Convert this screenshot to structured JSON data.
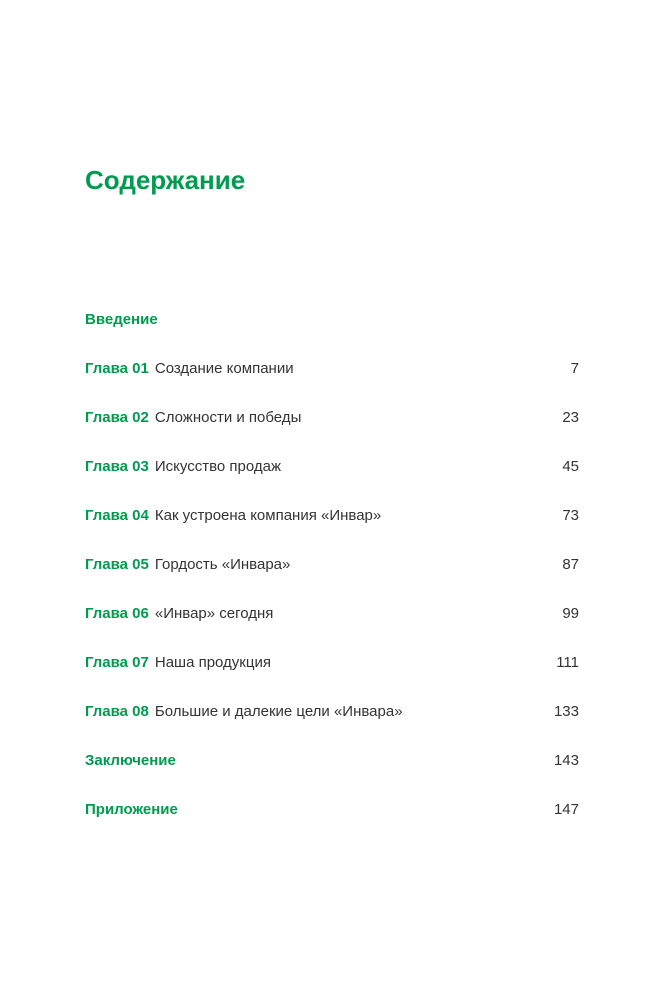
{
  "colors": {
    "accent": "#009b4e",
    "text": "#333333",
    "background": "#ffffff"
  },
  "typography": {
    "title_fontsize": 26,
    "body_fontsize": 15,
    "title_weight": "bold",
    "label_weight": "bold"
  },
  "title": "Содержание",
  "intro": "Введение",
  "chapters": [
    {
      "label": "Глава 01",
      "title": "Создание компании",
      "page": "7"
    },
    {
      "label": "Глава 02",
      "title": "Сложности и победы",
      "page": "23"
    },
    {
      "label": "Глава 03",
      "title": "Искусство продаж",
      "page": "45"
    },
    {
      "label": "Глава 04",
      "title": "Как устроена компания «Инвар»",
      "page": "73"
    },
    {
      "label": "Глава 05",
      "title": "Гордость «Инвара»",
      "page": "87"
    },
    {
      "label": "Глава 06",
      "title": "«Инвар» сегодня",
      "page": "99"
    },
    {
      "label": "Глава 07",
      "title": "Наша продукция",
      "page": "111"
    },
    {
      "label": "Глава 08",
      "title": "Большие и далекие цели «Инвара»",
      "page": "133"
    }
  ],
  "conclusion": {
    "label": "Заключение",
    "page": "143"
  },
  "appendix": {
    "label": "Приложение",
    "page": "147"
  }
}
